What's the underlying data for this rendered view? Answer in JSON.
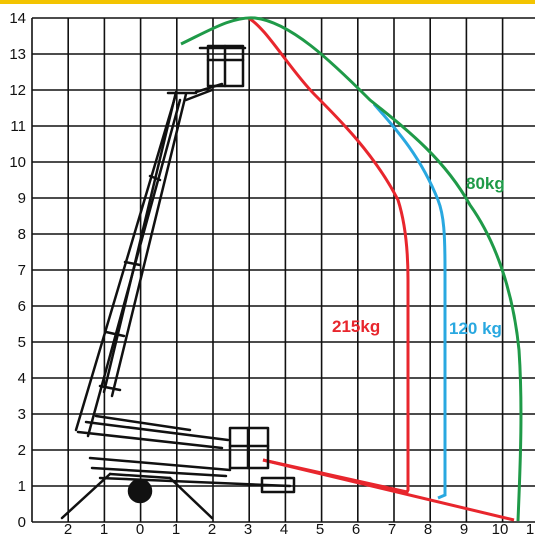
{
  "diagram": {
    "y_ticks": [
      "0",
      "1",
      "2",
      "3",
      "4",
      "5",
      "6",
      "7",
      "8",
      "9",
      "10",
      "11",
      "12",
      "13",
      "14"
    ],
    "x_ticks": [
      "2",
      "1",
      "0",
      "1",
      "2",
      "3",
      "4",
      "5",
      "6",
      "7",
      "8",
      "9",
      "10",
      "1"
    ],
    "curves": [
      {
        "label": "215kg",
        "color": "#e8262d"
      },
      {
        "label": "120 kg",
        "color": "#29a8e0"
      },
      {
        "label": "80kg",
        "color": "#1f9a48"
      }
    ],
    "colors": {
      "grid": "#111111",
      "machine": "#111111",
      "top_bar": "#f3c400"
    }
  }
}
